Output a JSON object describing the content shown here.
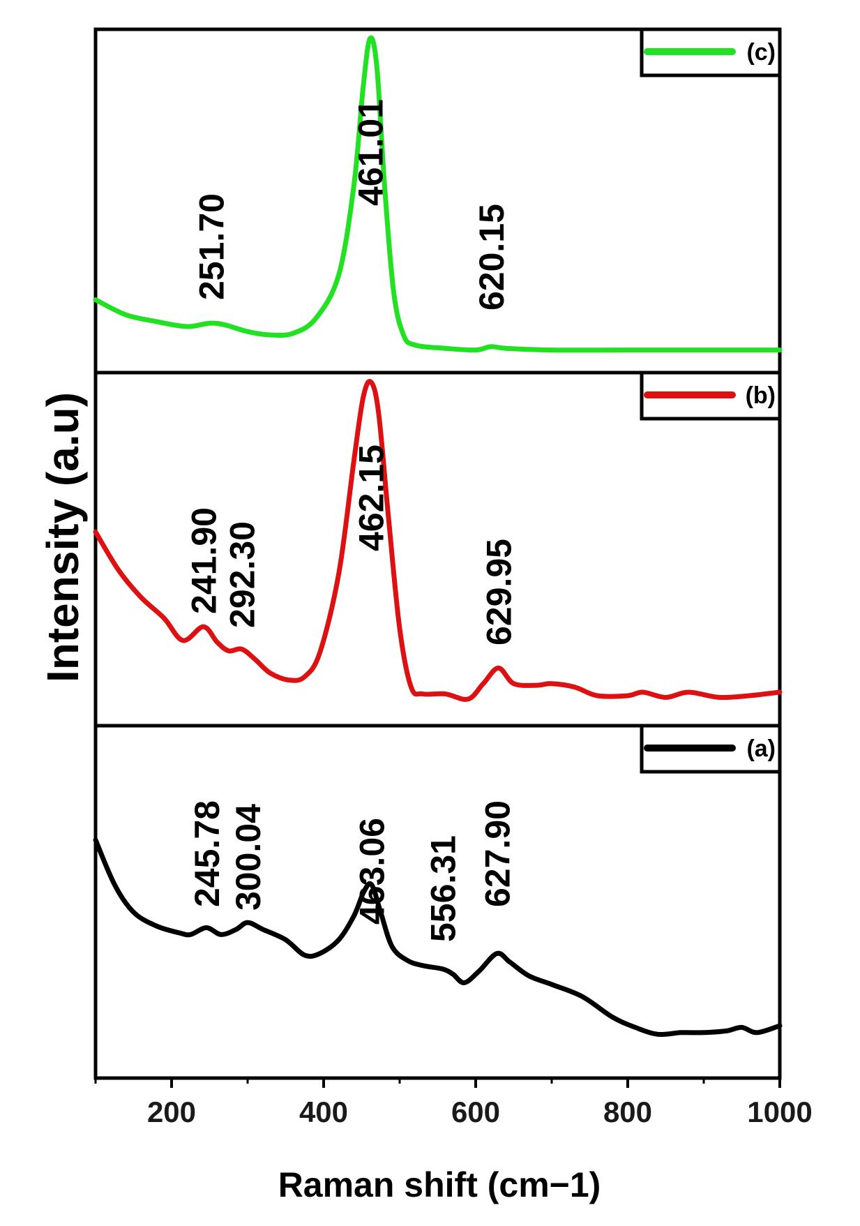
{
  "chart_data": {
    "type": "line",
    "xlabel": "Raman shift (cm−1)",
    "ylabel": "Intensity (a.u)",
    "xlim": [
      100,
      1000
    ],
    "x_ticks": [
      200,
      400,
      600,
      800,
      1000
    ],
    "stacked_panels": true,
    "grid": false,
    "legend_placement": "top-right",
    "series": [
      {
        "name": "(c)",
        "color": "#22e022",
        "ylim": [
          0,
          1
        ],
        "points": [
          [
            100,
            0.205
          ],
          [
            140,
            0.16
          ],
          [
            180,
            0.14
          ],
          [
            220,
            0.125
          ],
          [
            250,
            0.135
          ],
          [
            270,
            0.13
          ],
          [
            300,
            0.11
          ],
          [
            330,
            0.1
          ],
          [
            360,
            0.105
          ],
          [
            390,
            0.15
          ],
          [
            420,
            0.28
          ],
          [
            440,
            0.55
          ],
          [
            452,
            0.84
          ],
          [
            461,
            0.985
          ],
          [
            470,
            0.9
          ],
          [
            480,
            0.55
          ],
          [
            492,
            0.23
          ],
          [
            505,
            0.1
          ],
          [
            520,
            0.07
          ],
          [
            560,
            0.06
          ],
          [
            600,
            0.055
          ],
          [
            620,
            0.065
          ],
          [
            640,
            0.06
          ],
          [
            700,
            0.055
          ],
          [
            800,
            0.055
          ],
          [
            900,
            0.055
          ],
          [
            1000,
            0.055
          ]
        ],
        "annotations": [
          {
            "label": "251.70",
            "x": 251.7
          },
          {
            "label": "461.01",
            "x": 461.01
          },
          {
            "label": "620.15",
            "x": 620.15
          }
        ]
      },
      {
        "name": "(b)",
        "color": "#dd1111",
        "ylim": [
          0,
          1
        ],
        "points": [
          [
            100,
            0.55
          ],
          [
            130,
            0.44
          ],
          [
            160,
            0.36
          ],
          [
            190,
            0.3
          ],
          [
            215,
            0.235
          ],
          [
            241.9,
            0.275
          ],
          [
            260,
            0.23
          ],
          [
            275,
            0.205
          ],
          [
            292.3,
            0.21
          ],
          [
            310,
            0.18
          ],
          [
            330,
            0.14
          ],
          [
            355,
            0.12
          ],
          [
            375,
            0.13
          ],
          [
            395,
            0.2
          ],
          [
            420,
            0.43
          ],
          [
            440,
            0.76
          ],
          [
            452,
            0.94
          ],
          [
            462,
            0.985
          ],
          [
            472,
            0.9
          ],
          [
            485,
            0.6
          ],
          [
            500,
            0.27
          ],
          [
            515,
            0.1
          ],
          [
            530,
            0.08
          ],
          [
            560,
            0.08
          ],
          [
            590,
            0.065
          ],
          [
            610,
            0.11
          ],
          [
            629.95,
            0.155
          ],
          [
            650,
            0.11
          ],
          [
            680,
            0.105
          ],
          [
            700,
            0.11
          ],
          [
            730,
            0.1
          ],
          [
            760,
            0.075
          ],
          [
            800,
            0.075
          ],
          [
            820,
            0.085
          ],
          [
            850,
            0.07
          ],
          [
            880,
            0.085
          ],
          [
            920,
            0.07
          ],
          [
            960,
            0.075
          ],
          [
            1000,
            0.085
          ]
        ],
        "annotations": [
          {
            "label": "241.90",
            "x": 241.9
          },
          {
            "label": "292.30",
            "x": 292.3
          },
          {
            "label": "462.15",
            "x": 462.15
          },
          {
            "label": "629.95",
            "x": 629.95
          }
        ]
      },
      {
        "name": "(a)",
        "color": "#000000",
        "ylim": [
          0,
          1
        ],
        "points": [
          [
            100,
            0.68
          ],
          [
            125,
            0.55
          ],
          [
            150,
            0.47
          ],
          [
            180,
            0.43
          ],
          [
            210,
            0.41
          ],
          [
            225,
            0.405
          ],
          [
            245.78,
            0.425
          ],
          [
            265,
            0.405
          ],
          [
            285,
            0.42
          ],
          [
            300.04,
            0.44
          ],
          [
            320,
            0.42
          ],
          [
            350,
            0.39
          ],
          [
            375,
            0.345
          ],
          [
            395,
            0.35
          ],
          [
            420,
            0.39
          ],
          [
            440,
            0.46
          ],
          [
            453,
            0.53
          ],
          [
            463.06,
            0.55
          ],
          [
            475,
            0.47
          ],
          [
            490,
            0.37
          ],
          [
            510,
            0.33
          ],
          [
            530,
            0.315
          ],
          [
            556.31,
            0.305
          ],
          [
            570,
            0.29
          ],
          [
            585,
            0.265
          ],
          [
            605,
            0.3
          ],
          [
            627.9,
            0.35
          ],
          [
            645,
            0.325
          ],
          [
            670,
            0.285
          ],
          [
            700,
            0.26
          ],
          [
            740,
            0.225
          ],
          [
            780,
            0.165
          ],
          [
            810,
            0.135
          ],
          [
            840,
            0.115
          ],
          [
            870,
            0.12
          ],
          [
            900,
            0.12
          ],
          [
            930,
            0.125
          ],
          [
            950,
            0.135
          ],
          [
            970,
            0.12
          ],
          [
            1000,
            0.14
          ]
        ],
        "annotations": [
          {
            "label": "245.78",
            "x": 245.78
          },
          {
            "label": "300.04",
            "x": 300.04
          },
          {
            "label": "463.06",
            "x": 463.06
          },
          {
            "label": "556.31",
            "x": 556.31
          },
          {
            "label": "627.90",
            "x": 627.9
          }
        ]
      }
    ]
  }
}
